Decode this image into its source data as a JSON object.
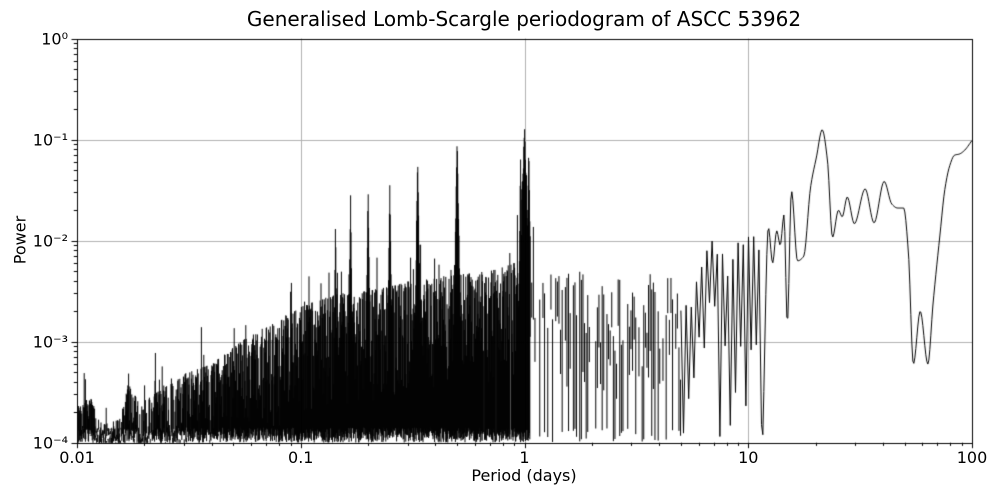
{
  "chart_data": {
    "type": "line",
    "title": "Generalised Lomb-Scargle periodogram of ASCC 53962",
    "xlabel": "Period (days)",
    "ylabel": "Power",
    "x_scale": "log",
    "y_scale": "log",
    "xlim": [
      0.01,
      100
    ],
    "ylim": [
      0.0001,
      1
    ],
    "grid": true,
    "grid_color": "#b0b0b0",
    "line_color": "#000000",
    "background": "#ffffff",
    "legend": null,
    "xticks": [
      {
        "v": 0.01,
        "label": "0.01"
      },
      {
        "v": 0.1,
        "label": "0.1"
      },
      {
        "v": 1,
        "label": "1"
      },
      {
        "v": 10,
        "label": "10"
      },
      {
        "v": 100,
        "label": "100"
      }
    ],
    "yticks": [
      {
        "v": 1,
        "label": "10⁰"
      },
      {
        "v": 0.1,
        "label": "10⁻¹"
      },
      {
        "v": 0.01,
        "label": "10⁻²"
      },
      {
        "v": 0.001,
        "label": "10⁻³"
      },
      {
        "v": 0.0001,
        "label": "10⁻⁴"
      }
    ],
    "noise_floor": 0.0001,
    "main_peaks": [
      {
        "period": 1.0,
        "power": 0.135
      },
      {
        "period": 0.5,
        "power": 0.105
      },
      {
        "period": 0.333,
        "power": 0.067
      },
      {
        "period": 0.25,
        "power": 0.036
      },
      {
        "period": 0.2,
        "power": 0.034
      },
      {
        "period": 0.167,
        "power": 0.029
      },
      {
        "period": 0.143,
        "power": 0.0165
      },
      {
        "period": 15.6,
        "power": 0.031
      },
      {
        "period": 21.4,
        "power": 0.125
      },
      {
        "period": 40.5,
        "power": 0.0385
      },
      {
        "period": 100.0,
        "power": 0.098
      }
    ],
    "deep_minima": [
      {
        "period": 54.7,
        "power": 0.0006
      },
      {
        "period": 63.5,
        "power": 0.0006
      }
    ],
    "peaks": [
      [
        0.017,
        0.00055,
        0.006
      ],
      [
        0.0909,
        0.0053,
        0.005
      ],
      [
        0.1,
        0.0036,
        0.004
      ],
      [
        0.109,
        0.0075,
        0.005
      ],
      [
        0.123,
        0.0067,
        0.005
      ],
      [
        0.143,
        0.0165,
        0.01
      ],
      [
        0.152,
        0.006,
        0.004
      ],
      [
        0.167,
        0.029,
        0.011
      ],
      [
        0.2,
        0.034,
        0.012
      ],
      [
        0.25,
        0.036,
        0.013
      ],
      [
        0.333,
        0.067,
        0.015
      ],
      [
        0.37,
        0.0045,
        0.004
      ],
      [
        0.405,
        0.006,
        0.004
      ],
      [
        0.44,
        0.0065,
        0.004
      ],
      [
        0.5,
        0.105,
        0.018
      ],
      [
        0.62,
        0.0068,
        0.004
      ],
      [
        0.71,
        0.0068,
        0.004
      ],
      [
        0.8,
        0.0085,
        0.004
      ],
      [
        0.86,
        0.0095,
        0.004
      ],
      [
        0.93,
        0.022,
        0.005
      ],
      [
        0.96,
        0.075,
        0.009
      ],
      [
        0.975,
        0.06,
        0.008
      ],
      [
        1.0,
        0.135,
        0.032
      ],
      [
        1.02,
        0.07,
        0.008
      ],
      [
        1.045,
        0.09,
        0.014
      ],
      [
        1.09,
        0.042,
        0.01
      ],
      [
        1.5,
        0.008,
        0.005
      ],
      [
        1.82,
        0.0105,
        0.006
      ],
      [
        2.2,
        0.0075,
        0.005
      ],
      [
        3.85,
        0.0056,
        0.004
      ],
      [
        4.4,
        0.0055,
        0.004
      ]
    ],
    "noise_envelope": [
      [
        0.01,
        0.00023
      ],
      [
        0.0115,
        0.00028
      ],
      [
        0.013,
        0.00015
      ],
      [
        0.0155,
        0.00017
      ],
      [
        0.017,
        0.0004
      ],
      [
        0.019,
        0.00024
      ],
      [
        0.022,
        0.0003
      ],
      [
        0.026,
        0.00038
      ],
      [
        0.03,
        0.00048
      ],
      [
        0.04,
        0.0006
      ],
      [
        0.05,
        0.0009
      ],
      [
        0.065,
        0.0013
      ],
      [
        0.08,
        0.0016
      ],
      [
        0.09,
        0.002
      ],
      [
        0.1,
        0.0022
      ],
      [
        0.12,
        0.0026
      ],
      [
        0.15,
        0.003
      ],
      [
        0.2,
        0.0032
      ],
      [
        0.25,
        0.0035
      ],
      [
        0.3,
        0.004
      ],
      [
        0.4,
        0.0042
      ],
      [
        0.5,
        0.0046
      ],
      [
        0.6,
        0.0048
      ],
      [
        0.7,
        0.005
      ],
      [
        0.8,
        0.0055
      ],
      [
        0.9,
        0.006
      ],
      [
        1.0,
        0.006
      ],
      [
        1.1,
        0.0052
      ],
      [
        1.2,
        0.005
      ],
      [
        1.5,
        0.0046
      ],
      [
        1.8,
        0.005
      ],
      [
        2.0,
        0.005
      ],
      [
        2.5,
        0.0042
      ],
      [
        3.0,
        0.004
      ],
      [
        3.5,
        0.0045
      ],
      [
        4.0,
        0.005
      ],
      [
        4.5,
        0.0046
      ],
      [
        5.0,
        0.0024
      ],
      [
        5.5,
        0.0022
      ],
      [
        6.0,
        0.005
      ],
      [
        6.5,
        0.0085
      ],
      [
        7.0,
        0.0105
      ],
      [
        7.6,
        0.008
      ],
      [
        8.2,
        0.006
      ],
      [
        8.9,
        0.0103
      ],
      [
        9.4,
        0.0098
      ],
      [
        10.0,
        0.013
      ],
      [
        10.5,
        0.017
      ],
      [
        10.9,
        0.007
      ],
      [
        11.3,
        0.0095
      ],
      [
        11.62,
        0.013
      ]
    ],
    "smooth_curve": [
      [
        11.62,
        0.00012
      ],
      [
        12.3,
        0.0135
      ],
      [
        12.85,
        0.006
      ],
      [
        13.4,
        0.0125
      ],
      [
        13.9,
        0.009
      ],
      [
        14.45,
        0.018
      ],
      [
        14.95,
        0.0015
      ],
      [
        15.6,
        0.031
      ],
      [
        16.6,
        0.0063
      ],
      [
        17.7,
        0.007
      ],
      [
        19.0,
        0.034
      ],
      [
        20.2,
        0.068
      ],
      [
        21.4,
        0.125
      ],
      [
        22.6,
        0.062
      ],
      [
        23.8,
        0.0108
      ],
      [
        25.3,
        0.02
      ],
      [
        26.3,
        0.0172
      ],
      [
        27.7,
        0.027
      ],
      [
        29.8,
        0.0147
      ],
      [
        33.3,
        0.0325
      ],
      [
        36.5,
        0.015
      ],
      [
        40.5,
        0.0385
      ],
      [
        43.8,
        0.023
      ],
      [
        46.5,
        0.021
      ],
      [
        49.5,
        0.021
      ],
      [
        52.0,
        0.0075
      ],
      [
        54.7,
        0.0006
      ],
      [
        58.7,
        0.002
      ],
      [
        63.5,
        0.0006
      ],
      [
        67.0,
        0.0024
      ],
      [
        72.0,
        0.0117
      ],
      [
        75.6,
        0.032
      ],
      [
        79.5,
        0.055
      ],
      [
        83.5,
        0.07
      ],
      [
        88.0,
        0.072
      ],
      [
        92.5,
        0.078
      ],
      [
        100.0,
        0.098
      ]
    ],
    "gaps": [
      [
        0.66,
        0.0015
      ],
      [
        0.745,
        0.0015
      ],
      [
        0.865,
        0.002
      ],
      [
        1.13,
        0.006
      ],
      [
        1.36,
        0.004
      ],
      [
        2.02,
        0.016
      ],
      [
        2.56,
        0.005
      ],
      [
        2.85,
        0.005
      ],
      [
        3.32,
        0.008
      ],
      [
        4.07,
        0.007
      ],
      [
        5.05,
        0.008
      ],
      [
        5.6,
        0.008
      ],
      [
        9.9,
        0.006
      ],
      [
        11.45,
        0.012
      ]
    ],
    "render": {
      "solid_max": 1.06,
      "striped_max": 5.0,
      "zigzag_max": 11.62,
      "seed": 20240613
    }
  }
}
